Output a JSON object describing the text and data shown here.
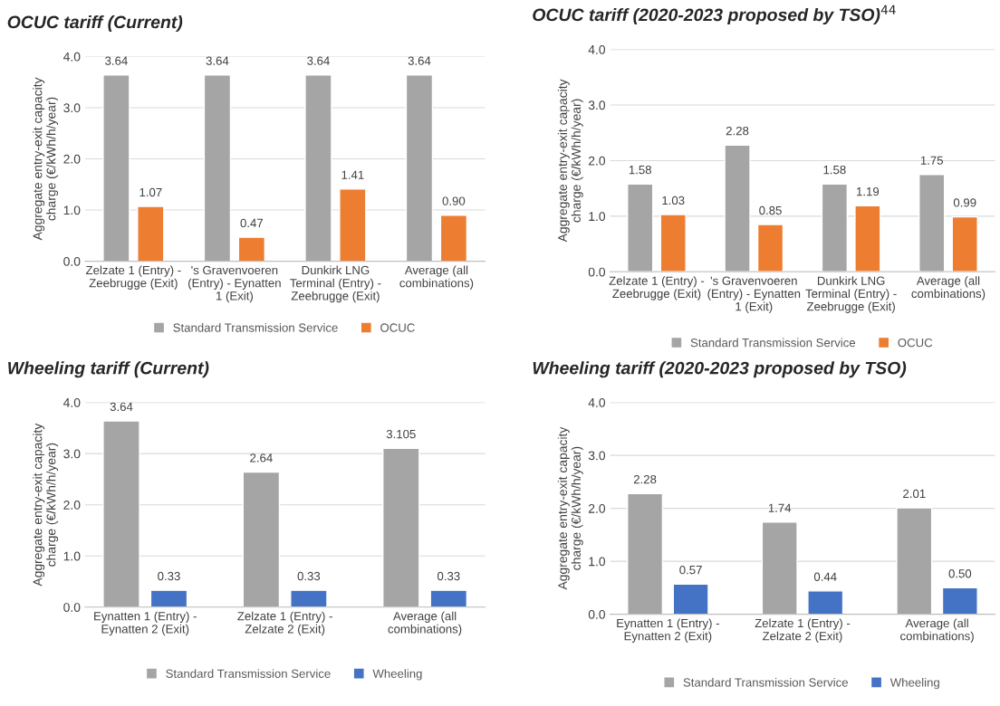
{
  "chart_data": [
    {
      "type": "bar",
      "title": "OCUC tariff (Current)",
      "ylabel": "Aggregate entry-exit capacity\ncharge (€/kWh/h/year)",
      "categories": [
        "Zelzate 1 (Entry) -\nZeebrugge (Exit)",
        "'s Gravenvoeren\n(Entry) - Eynatten\n1 (Exit)",
        "Dunkirk LNG\nTerminal (Entry) -\nZeebrugge (Exit)",
        "Average (all\ncombinations)"
      ],
      "series": [
        {
          "name": "Standard Transmission Service",
          "color": "#a5a5a5",
          "values": [
            3.64,
            3.64,
            3.64,
            3.64
          ],
          "value_labels": [
            "3.64",
            "3.64",
            "3.64",
            "3.64"
          ]
        },
        {
          "name": "OCUC",
          "color": "#ed7d31",
          "values": [
            1.07,
            0.47,
            1.41,
            0.9
          ],
          "value_labels": [
            "1.07",
            "0.47",
            "1.41",
            "0.90"
          ]
        }
      ],
      "ylim": [
        0,
        4
      ],
      "yticks": [
        {
          "value": 0,
          "label": "0.0"
        },
        {
          "value": 1,
          "label": "1.0"
        },
        {
          "value": 2,
          "label": "2.0"
        },
        {
          "value": 3,
          "label": "3.0"
        },
        {
          "value": 4,
          "label": "4.0"
        }
      ],
      "grid": "y",
      "legend": "bottom"
    },
    {
      "type": "bar",
      "title": "OCUC tariff (2020-2023 proposed by TSO)$^{44}$",
      "ylabel": "Aggregate entry-exit capacity\ncharge (€/kWh/h/year)",
      "categories": [
        "Zelzate 1 (Entry) -\nZeebrugge (Exit)",
        "'s Gravenvoeren\n(Entry) - Eynatten\n1 (Exit)",
        "Dunkirk LNG\nTerminal (Entry) -\nZeebrugge (Exit)",
        "Average (all\ncombinations)"
      ],
      "series": [
        {
          "name": "Standard Transmission Service",
          "color": "#a5a5a5",
          "values": [
            1.58,
            2.28,
            1.58,
            1.75
          ],
          "value_labels": [
            "1.58",
            "2.28",
            "1.58",
            "1.75"
          ]
        },
        {
          "name": "OCUC",
          "color": "#ed7d31",
          "values": [
            1.03,
            0.85,
            1.19,
            0.99
          ],
          "value_labels": [
            "1.03",
            "0.85",
            "1.19",
            "0.99"
          ]
        }
      ],
      "ylim": [
        0,
        4
      ],
      "yticks": [
        {
          "value": 0,
          "label": "0.0"
        },
        {
          "value": 1,
          "label": "1.0"
        },
        {
          "value": 2,
          "label": "2.0"
        },
        {
          "value": 3,
          "label": "3.0"
        },
        {
          "value": 4,
          "label": "4.0"
        }
      ],
      "grid": "y",
      "legend": "bottom"
    },
    {
      "type": "bar",
      "title": "Wheeling tariff (Current)",
      "ylabel": "Aggregate entry-exit capacity\ncharge (€/kWh/h/year)",
      "categories": [
        "Eynatten 1 (Entry) -\nEynatten 2 (Exit)",
        "Zelzate 1 (Entry) -\nZelzate 2 (Exit)",
        "Average (all\ncombinations)"
      ],
      "series": [
        {
          "name": "Standard Transmission Service",
          "color": "#a5a5a5",
          "values": [
            3.64,
            2.64,
            3.105
          ],
          "value_labels": [
            "3.64",
            "2.64",
            "3.105"
          ]
        },
        {
          "name": "Wheeling",
          "color": "#4472c4",
          "values": [
            0.33,
            0.33,
            0.33
          ],
          "value_labels": [
            "0.33",
            "0.33",
            "0.33"
          ]
        }
      ],
      "ylim": [
        0,
        4
      ],
      "yticks": [
        {
          "value": 0,
          "label": "0.0"
        },
        {
          "value": 1,
          "label": "1.0"
        },
        {
          "value": 2,
          "label": "2.0"
        },
        {
          "value": 3,
          "label": "3.0"
        },
        {
          "value": 4,
          "label": "4.0"
        }
      ],
      "grid": "y",
      "legend": "bottom"
    },
    {
      "type": "bar",
      "title": "Wheeling tariff (2020-2023 proposed by TSO)",
      "ylabel": "Aggregate entry-exit capacity\ncharge (€/kWh/h/year)",
      "categories": [
        "Eynatten 1 (Entry) -\nEynatten 2 (Exit)",
        "Zelzate 1 (Entry) -\nZelzate 2 (Exit)",
        "Average (all\ncombinations)"
      ],
      "series": [
        {
          "name": "Standard Transmission Service",
          "color": "#a5a5a5",
          "values": [
            2.28,
            1.74,
            2.01
          ],
          "value_labels": [
            "2.28",
            "1.74",
            "2.01"
          ]
        },
        {
          "name": "Wheeling",
          "color": "#4472c4",
          "values": [
            0.57,
            0.44,
            0.5
          ],
          "value_labels": [
            "0.57",
            "0.44",
            "0.50"
          ]
        }
      ],
      "ylim": [
        0,
        4
      ],
      "yticks": [
        {
          "value": 0,
          "label": "0.0"
        },
        {
          "value": 1,
          "label": "1.0"
        },
        {
          "value": 2,
          "label": "2.0"
        },
        {
          "value": 3,
          "label": "3.0"
        },
        {
          "value": 4,
          "label": "4.0"
        }
      ],
      "grid": "y",
      "legend": "bottom"
    }
  ]
}
